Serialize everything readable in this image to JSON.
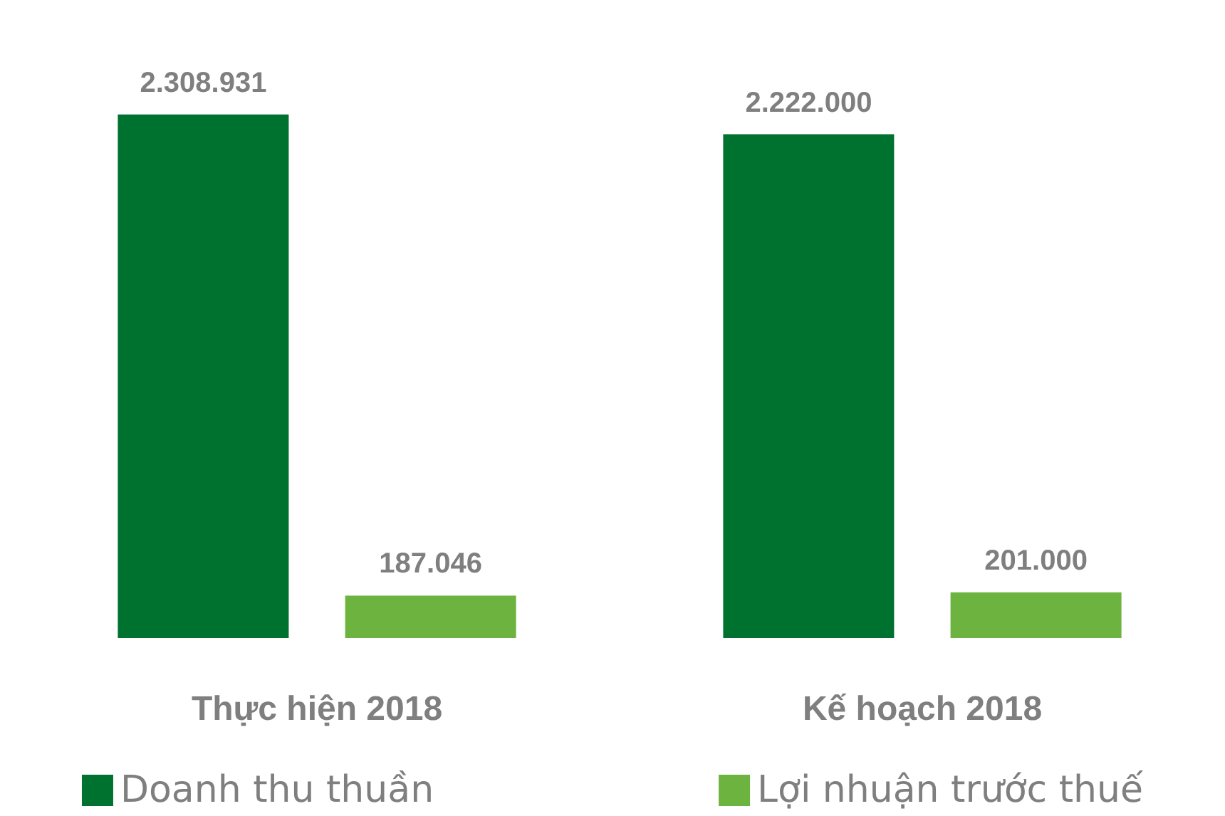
{
  "chart_data": {
    "type": "bar",
    "categories": [
      "Thực hiện 2018",
      "Kế hoạch 2018"
    ],
    "series": [
      {
        "name": "Doanh thu thuần",
        "color": "#00722f",
        "values": [
          2308931,
          2222000
        ],
        "value_labels": [
          "2.308.931",
          "2.222.000"
        ]
      },
      {
        "name": "Lợi nhuận trước thuế",
        "color": "#6db33f",
        "values": [
          187046,
          201000
        ],
        "value_labels": [
          "187.046",
          "201.000"
        ]
      }
    ],
    "legend": "bottom"
  }
}
